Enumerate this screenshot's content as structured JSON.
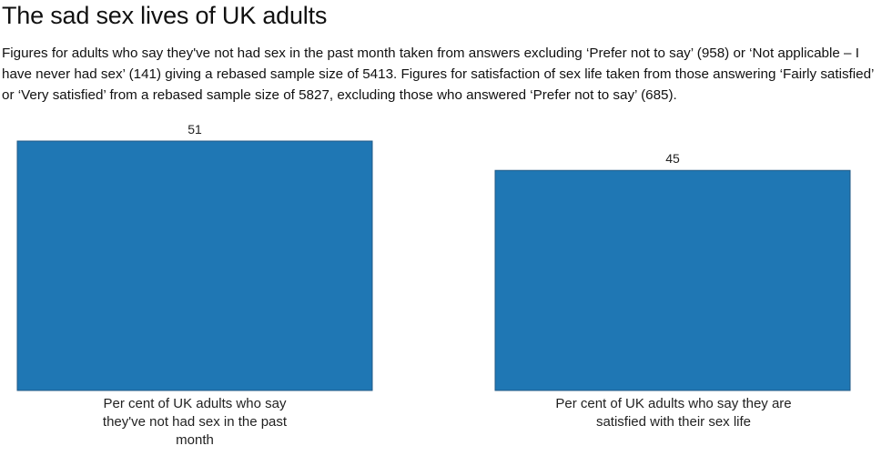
{
  "header": {
    "title": "The sad sex lives of UK adults",
    "subtitle": "Figures for adults who say they've not had sex in the past month taken from answers excluding ‘Prefer not to say’ (958) or ‘Not applicable – I have never had sex’ (141) giving a rebased sample size of 5413. Figures for satisfaction of sex life taken from those answering ‘Fairly satisfied’ or ‘Very satisfied’ from a rebased sample size of 5827, excluding those who answered ‘Prefer not to say’ (685)."
  },
  "chart_data": {
    "type": "bar",
    "categories": [
      "Per cent of UK adults who say they've not had sex in the past month",
      "Per cent of UK adults who say they are satisfied with their sex life"
    ],
    "values": [
      51,
      45
    ],
    "data_labels": [
      "51",
      "45"
    ],
    "title": "The sad sex lives of UK adults",
    "xlabel": "",
    "ylabel": "",
    "grid": false,
    "bar_color": "#1f77b4"
  }
}
